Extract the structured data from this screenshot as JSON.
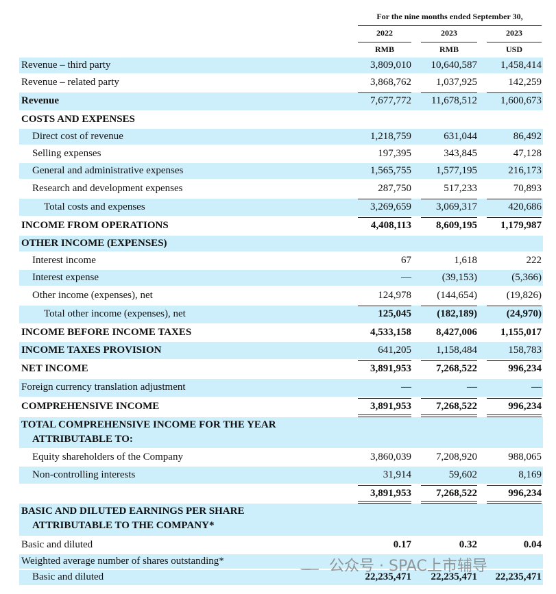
{
  "header": {
    "period": "For the nine months ended September 30,",
    "years": [
      "2022",
      "2023",
      "2023"
    ],
    "currencies": [
      "RMB",
      "RMB",
      "USD"
    ]
  },
  "rows": [
    {
      "label": "Revenue – third party",
      "values": [
        "3,809,010",
        "10,640,587",
        "1,458,414"
      ]
    },
    {
      "label": "Revenue – related party",
      "values": [
        "3,868,762",
        "1,037,925",
        "142,259"
      ]
    },
    {
      "label": "Revenue",
      "values": [
        "7,677,772",
        "11,678,512",
        "1,600,673"
      ]
    },
    {
      "label": "COSTS AND EXPENSES"
    },
    {
      "label": "Direct cost of revenue",
      "values": [
        "1,218,759",
        "631,044",
        "86,492"
      ]
    },
    {
      "label": "Selling expenses",
      "values": [
        "197,395",
        "343,845",
        "47,128"
      ]
    },
    {
      "label": "General and administrative expenses",
      "values": [
        "1,565,755",
        "1,577,195",
        "216,173"
      ]
    },
    {
      "label": "Research and development expenses",
      "values": [
        "287,750",
        "517,233",
        "70,893"
      ]
    },
    {
      "label": "Total costs and expenses",
      "values": [
        "3,269,659",
        "3,069,317",
        "420,686"
      ]
    },
    {
      "label": "INCOME FROM OPERATIONS",
      "values": [
        "4,408,113",
        "8,609,195",
        "1,179,987"
      ]
    },
    {
      "label": "OTHER INCOME (EXPENSES)"
    },
    {
      "label": "Interest income",
      "values": [
        "67",
        "1,618",
        "222"
      ]
    },
    {
      "label": "Interest expense",
      "values": [
        "—",
        "(39,153)",
        "(5,366)"
      ]
    },
    {
      "label": "Other income (expenses), net",
      "values": [
        "124,978",
        "(144,654)",
        "(19,826)"
      ]
    },
    {
      "label": "Total other income (expenses), net",
      "values": [
        "125,045",
        "(182,189)",
        "(24,970)"
      ]
    },
    {
      "label": "INCOME BEFORE INCOME TAXES",
      "values": [
        "4,533,158",
        "8,427,006",
        "1,155,017"
      ]
    },
    {
      "label": "INCOME TAXES PROVISION",
      "values": [
        "641,205",
        "1,158,484",
        "158,783"
      ]
    },
    {
      "label": "NET INCOME",
      "values": [
        "3,891,953",
        "7,268,522",
        "996,234"
      ]
    },
    {
      "label": "Foreign currency translation adjustment",
      "values": [
        "—",
        "—",
        "—"
      ]
    },
    {
      "label": "COMPREHENSIVE INCOME",
      "values": [
        "3,891,953",
        "7,268,522",
        "996,234"
      ]
    },
    {
      "lines": [
        "TOTAL COMPREHENSIVE INCOME FOR THE YEAR",
        "ATTRIBUTABLE TO:"
      ]
    },
    {
      "label": "Equity shareholders of the Company",
      "values": [
        "3,860,039",
        "7,208,920",
        "988,065"
      ]
    },
    {
      "label": "Non-controlling interests",
      "values": [
        "31,914",
        "59,602",
        "8,169"
      ]
    },
    {
      "values": [
        "3,891,953",
        "7,268,522",
        "996,234"
      ]
    },
    {
      "lines": [
        "BASIC AND DILUTED EARNINGS PER SHARE",
        "ATTRIBUTABLE TO THE COMPANY*"
      ]
    },
    {
      "label": "Basic and diluted",
      "values": [
        "0.17",
        "0.32",
        "0.04"
      ]
    },
    {
      "label": "Weighted average number of shares outstanding*"
    },
    {
      "label": "Basic and diluted",
      "values": [
        "22,235,471",
        "22,235,471",
        "22,235,471"
      ]
    }
  ],
  "watermark": "公众号 · SPAC上市辅导"
}
